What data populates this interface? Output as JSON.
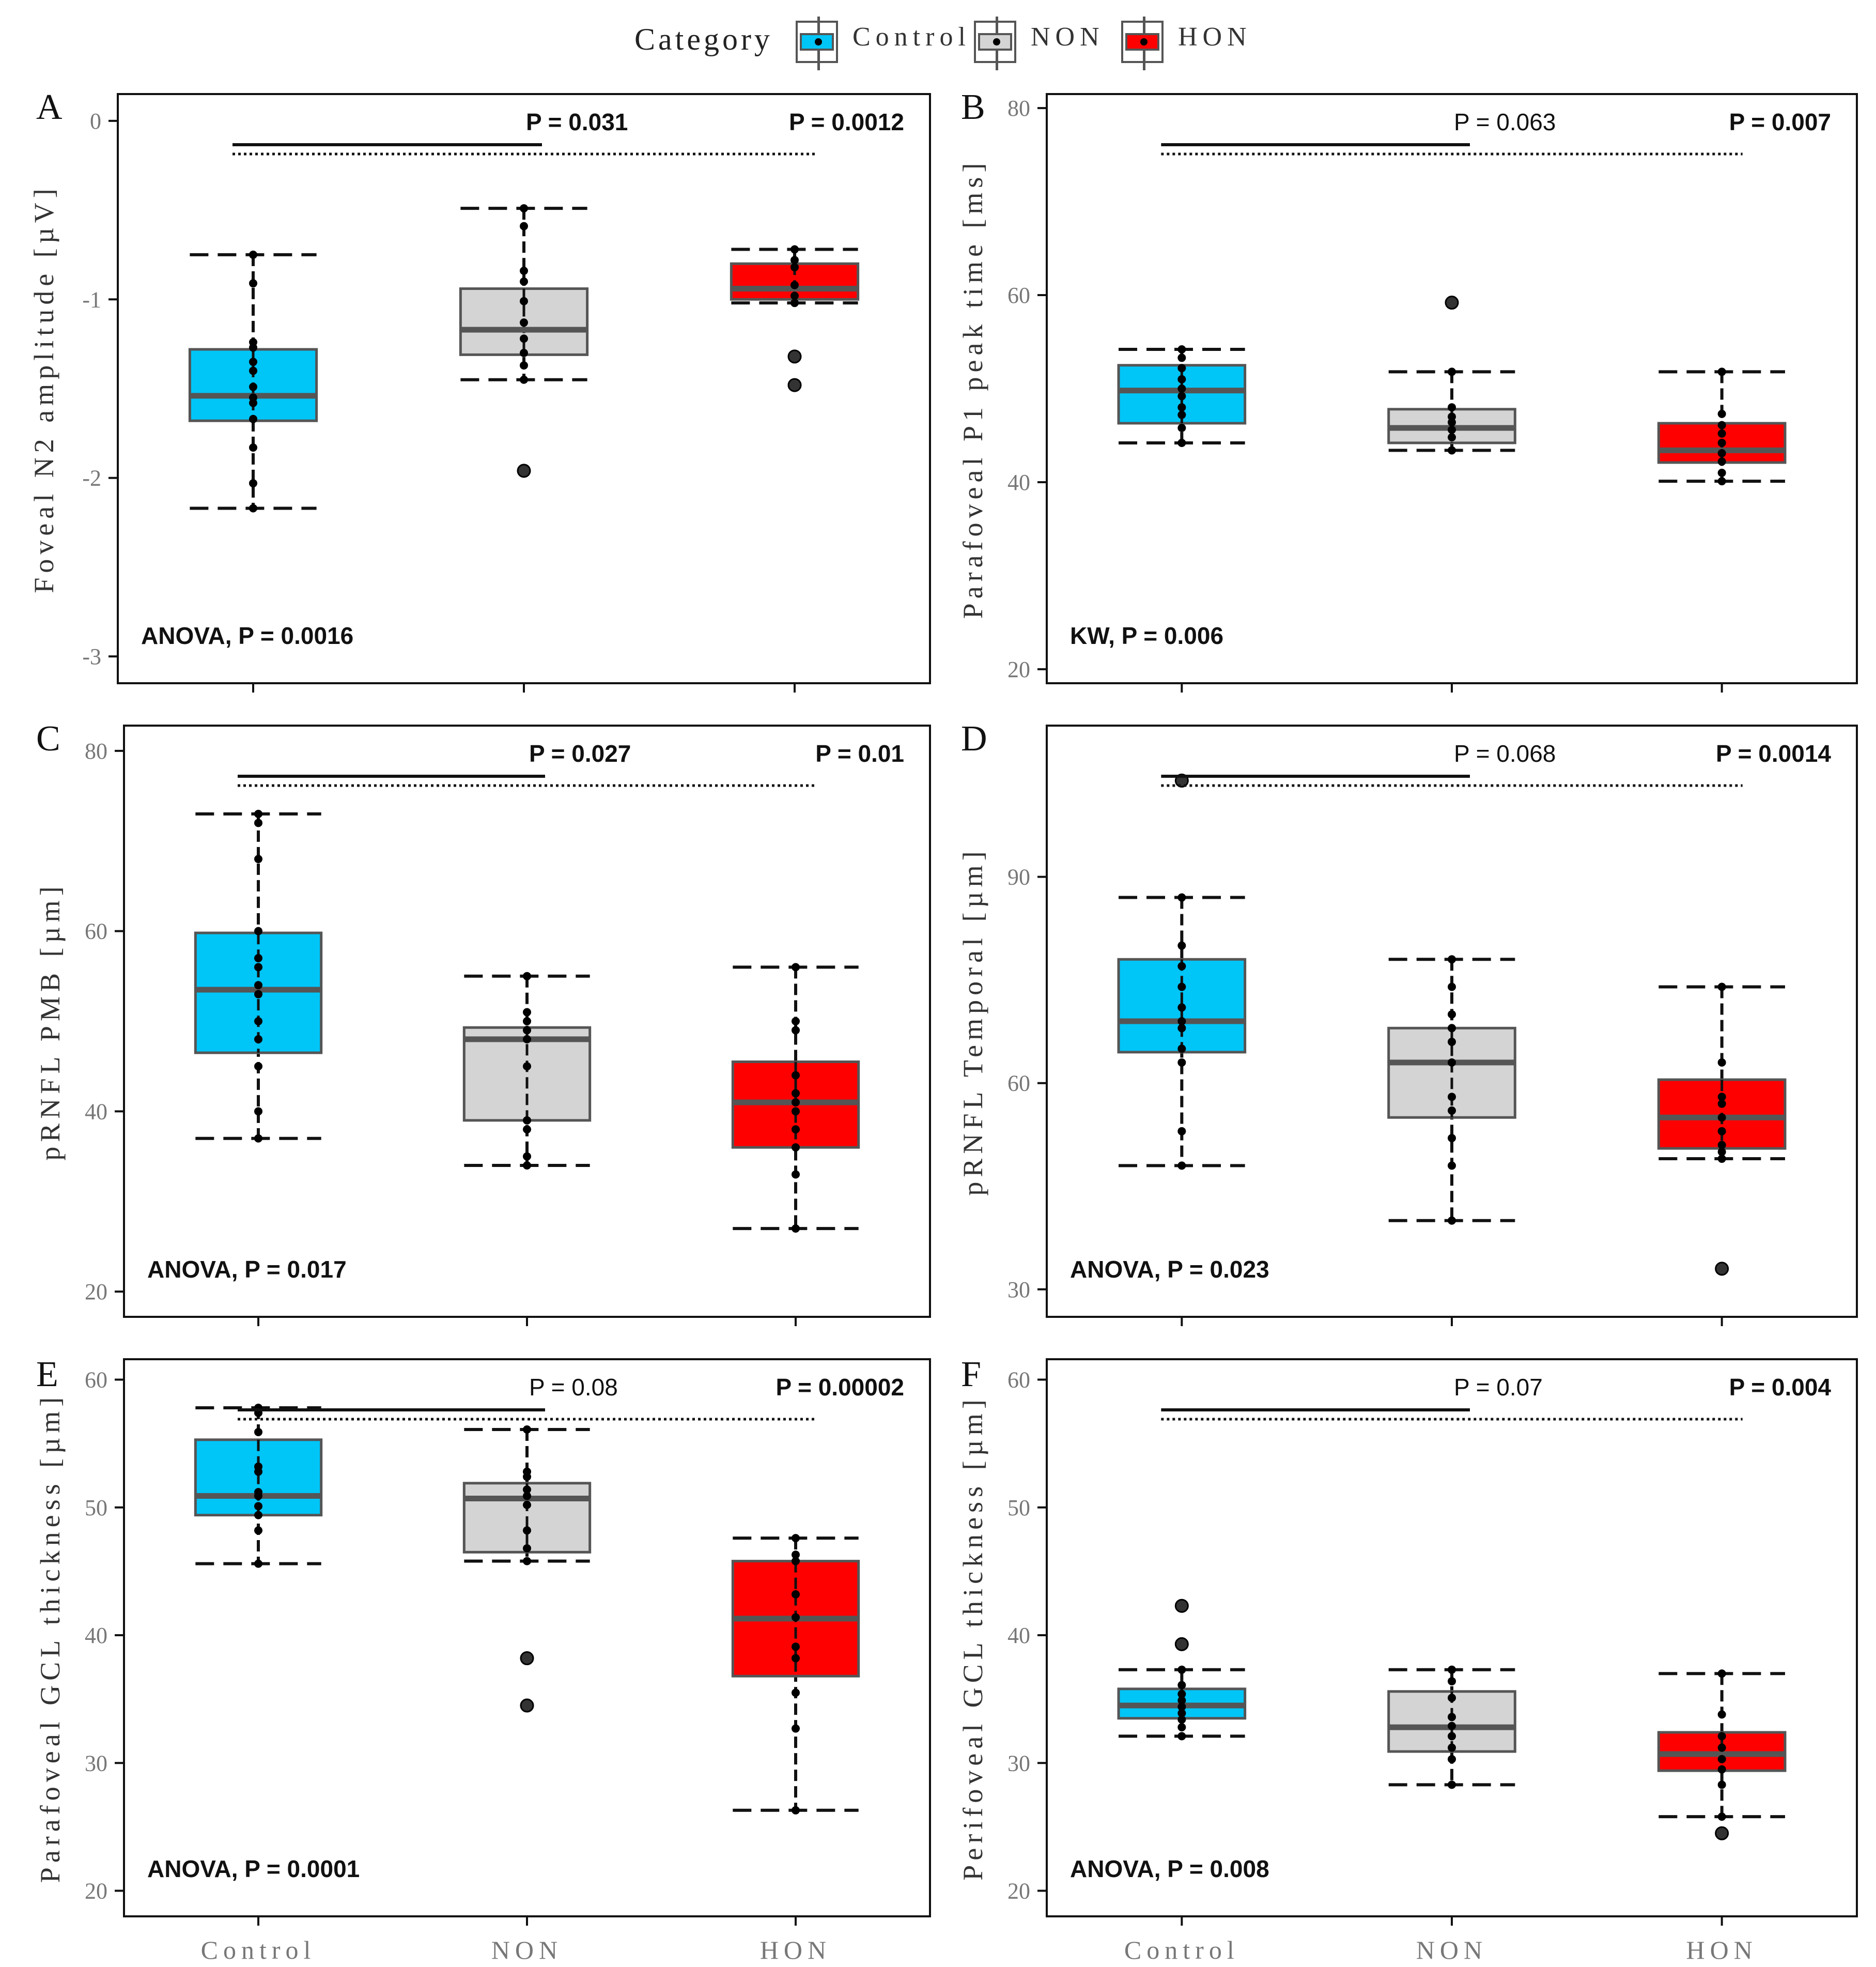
{
  "legend": {
    "title": "Category",
    "items": [
      {
        "label": "Control",
        "color": "#00c5f7"
      },
      {
        "label": "NON",
        "color": "#d4d4d4"
      },
      {
        "label": "HON",
        "color": "#ff0000"
      }
    ]
  },
  "colors": {
    "Control": "#00c5f7",
    "NON": "#d4d4d4",
    "HON": "#ff0000",
    "box_border": "#555555",
    "median": "#555555"
  },
  "chart_data": [
    {
      "panel": "A",
      "type": "box",
      "ylabel": "Foveal N2 amplitude [µV]",
      "ylim": [
        -3.15,
        0.15
      ],
      "yticks": [
        0,
        -1,
        -2,
        -3
      ],
      "xticklabels": [
        "Control",
        "NON",
        "HON"
      ],
      "test_label": "ANOVA, P = 0.0016",
      "comparisons": [
        {
          "label": "P = 0.031",
          "bold": true
        },
        {
          "label": "P = 0.0012",
          "bold": true
        }
      ],
      "groups": [
        {
          "name": "Control",
          "q1": -1.68,
          "median": -1.54,
          "q3": -1.28,
          "whisker_low": -2.17,
          "whisker_high": -0.75,
          "points": [
            -0.75,
            -0.91,
            -1.24,
            -1.27,
            -1.35,
            -1.4,
            -1.49,
            -1.55,
            -1.58,
            -1.67,
            -1.83,
            -2.03,
            -2.17
          ],
          "outliers": []
        },
        {
          "name": "NON",
          "q1": -1.31,
          "median": -1.17,
          "q3": -0.94,
          "whisker_low": -1.45,
          "whisker_high": -0.49,
          "points": [
            -0.49,
            -0.59,
            -0.84,
            -0.9,
            -1.01,
            -1.13,
            -1.22,
            -1.3,
            -1.37,
            -1.45
          ],
          "outliers": [
            -1.96
          ]
        },
        {
          "name": "HON",
          "q1": -1.0,
          "median": -0.94,
          "q3": -0.8,
          "whisker_low": -1.02,
          "whisker_high": -0.72,
          "points": [
            -0.72,
            -0.78,
            -0.82,
            -0.92,
            -0.98,
            -1.02
          ],
          "outliers": [
            -1.32,
            -1.48
          ]
        }
      ]
    },
    {
      "panel": "B",
      "type": "box",
      "ylabel": "Parafoveal P1 peak time [ms]",
      "ylim": [
        18.5,
        81.5
      ],
      "yticks": [
        80,
        60,
        40,
        20
      ],
      "xticklabels": [
        "Control",
        "NON",
        "HON"
      ],
      "test_label": "KW, P = 0.006",
      "comparisons": [
        {
          "label": "P = 0.063",
          "bold": false
        },
        {
          "label": "P = 0.007",
          "bold": true
        }
      ],
      "groups": [
        {
          "name": "Control",
          "q1": 46.3,
          "median": 49.8,
          "q3": 52.5,
          "whisker_low": 44.2,
          "whisker_high": 54.2,
          "points": [
            44.2,
            45.8,
            47.2,
            48.0,
            49.2,
            50.0,
            51.0,
            52.2,
            53.3,
            54.2
          ],
          "outliers": []
        },
        {
          "name": "NON",
          "q1": 44.2,
          "median": 45.8,
          "q3": 47.8,
          "whisker_low": 43.4,
          "whisker_high": 51.8,
          "points": [
            43.4,
            44.8,
            45.6,
            46.4,
            47.0,
            48.0,
            51.8
          ],
          "outliers": [
            59.2
          ]
        },
        {
          "name": "HON",
          "q1": 42.1,
          "median": 43.4,
          "q3": 46.3,
          "whisker_low": 40.1,
          "whisker_high": 51.8,
          "points": [
            40.1,
            41.0,
            42.2,
            43.1,
            44.2,
            45.2,
            46.1,
            47.3,
            51.8
          ],
          "outliers": []
        }
      ]
    },
    {
      "panel": "C",
      "type": "box",
      "ylabel": "pRNFL PMB [µm]",
      "ylim": [
        17.2,
        82.8
      ],
      "yticks": [
        80,
        60,
        40,
        20
      ],
      "xticklabels": [
        "Control",
        "NON",
        "HON"
      ],
      "test_label": "ANOVA, P = 0.017",
      "comparisons": [
        {
          "label": "P = 0.027",
          "bold": true
        },
        {
          "label": "P = 0.01",
          "bold": true
        }
      ],
      "groups": [
        {
          "name": "Control",
          "q1": 46.5,
          "median": 53.5,
          "q3": 59.8,
          "whisker_low": 37.0,
          "whisker_high": 73.0,
          "points": [
            37,
            40,
            45,
            48,
            50,
            53,
            54,
            56,
            57,
            60,
            68,
            72,
            73
          ],
          "outliers": []
        },
        {
          "name": "NON",
          "q1": 39.0,
          "median": 48.0,
          "q3": 49.3,
          "whisker_low": 34.0,
          "whisker_high": 55.0,
          "points": [
            34,
            35,
            38,
            39,
            45,
            48,
            49,
            50,
            51,
            55
          ],
          "outliers": []
        },
        {
          "name": "HON",
          "q1": 36.0,
          "median": 41.0,
          "q3": 45.5,
          "whisker_low": 27.0,
          "whisker_high": 56.0,
          "points": [
            27,
            33,
            36,
            38,
            40,
            41,
            42,
            44,
            49,
            50,
            56
          ],
          "outliers": []
        }
      ]
    },
    {
      "panel": "D",
      "type": "box",
      "ylabel": "pRNFL Temporal [µm]",
      "ylim": [
        26.0,
        112.0
      ],
      "yticks": [
        90,
        60,
        30
      ],
      "xticklabels": [
        "Control",
        "NON",
        "HON"
      ],
      "test_label": "ANOVA, P = 0.023",
      "comparisons": [
        {
          "label": "P = 0.068",
          "bold": false
        },
        {
          "label": "P = 0.0014",
          "bold": true
        }
      ],
      "groups": [
        {
          "name": "Control",
          "q1": 64.5,
          "median": 69.0,
          "q3": 78.0,
          "whisker_low": 48.0,
          "whisker_high": 87.0,
          "points": [
            48,
            53,
            63,
            65,
            68,
            69,
            71,
            74,
            77,
            80,
            87
          ],
          "outliers": [
            104
          ]
        },
        {
          "name": "NON",
          "q1": 55.0,
          "median": 63.0,
          "q3": 68.0,
          "whisker_low": 40.0,
          "whisker_high": 78.0,
          "points": [
            40,
            48,
            52,
            56,
            58,
            63,
            66,
            68,
            70,
            74,
            78
          ],
          "outliers": []
        },
        {
          "name": "HON",
          "q1": 50.5,
          "median": 55.0,
          "q3": 60.5,
          "whisker_low": 49.0,
          "whisker_high": 74.0,
          "points": [
            49,
            50,
            51,
            53,
            55,
            57,
            58,
            63,
            74
          ],
          "outliers": [
            33
          ]
        }
      ]
    },
    {
      "panel": "E",
      "type": "box",
      "ylabel": "Parafoveal GCL thickness [µm]",
      "ylim": [
        18.0,
        61.6
      ],
      "yticks": [
        60,
        50,
        40,
        30,
        20
      ],
      "xticklabels": [
        "Control",
        "NON",
        "HON"
      ],
      "test_label": "ANOVA, P = 0.0001",
      "comparisons": [
        {
          "label": "P = 0.08",
          "bold": false
        },
        {
          "label": "P = 0.00002",
          "bold": true
        }
      ],
      "groups": [
        {
          "name": "Control",
          "q1": 49.4,
          "median": 50.9,
          "q3": 55.3,
          "whisker_low": 45.6,
          "whisker_high": 57.8,
          "points": [
            45.6,
            48.2,
            49.4,
            50.1,
            50.9,
            51.2,
            52.8,
            53.2,
            55.9,
            57.4,
            57.8
          ],
          "outliers": []
        },
        {
          "name": "NON",
          "q1": 46.5,
          "median": 50.7,
          "q3": 51.9,
          "whisker_low": 45.8,
          "whisker_high": 56.1,
          "points": [
            45.8,
            46.8,
            48.2,
            50.2,
            50.9,
            51.4,
            52.4,
            52.8,
            56.1
          ],
          "outliers": [
            38.2,
            34.5
          ]
        },
        {
          "name": "HON",
          "q1": 36.8,
          "median": 41.3,
          "q3": 45.8,
          "whisker_low": 26.3,
          "whisker_high": 47.6,
          "points": [
            26.3,
            32.7,
            35.5,
            38.2,
            39.1,
            41.4,
            43.2,
            45.8,
            46.3,
            47.6
          ],
          "outliers": []
        }
      ]
    },
    {
      "panel": "F",
      "type": "box",
      "ylabel": "Perifoveal GCL thickness [µm]",
      "ylim": [
        18.0,
        61.6
      ],
      "yticks": [
        60,
        50,
        40,
        30,
        20
      ],
      "xticklabels": [
        "Control",
        "NON",
        "HON"
      ],
      "test_label": "ANOVA, P = 0.008",
      "comparisons": [
        {
          "label": "P = 0.07",
          "bold": false
        },
        {
          "label": "P = 0.004",
          "bold": true
        }
      ],
      "groups": [
        {
          "name": "Control",
          "q1": 33.5,
          "median": 34.5,
          "q3": 35.8,
          "whisker_low": 32.1,
          "whisker_high": 37.3,
          "points": [
            32.1,
            32.8,
            33.4,
            33.9,
            34.4,
            34.9,
            35.4,
            36.1,
            37.3
          ],
          "outliers": [
            42.3,
            39.3
          ]
        },
        {
          "name": "NON",
          "q1": 30.9,
          "median": 32.8,
          "q3": 35.6,
          "whisker_low": 28.3,
          "whisker_high": 37.3,
          "points": [
            28.3,
            30.3,
            31.2,
            32.1,
            32.9,
            33.6,
            35.1,
            36.4,
            37.3
          ],
          "outliers": []
        },
        {
          "name": "HON",
          "q1": 29.4,
          "median": 30.7,
          "q3": 32.4,
          "whisker_low": 25.8,
          "whisker_high": 37.0,
          "points": [
            25.8,
            28.3,
            29.5,
            30.3,
            31.2,
            32.1,
            33.8,
            37.0
          ],
          "outliers": [
            24.5
          ]
        }
      ]
    }
  ]
}
